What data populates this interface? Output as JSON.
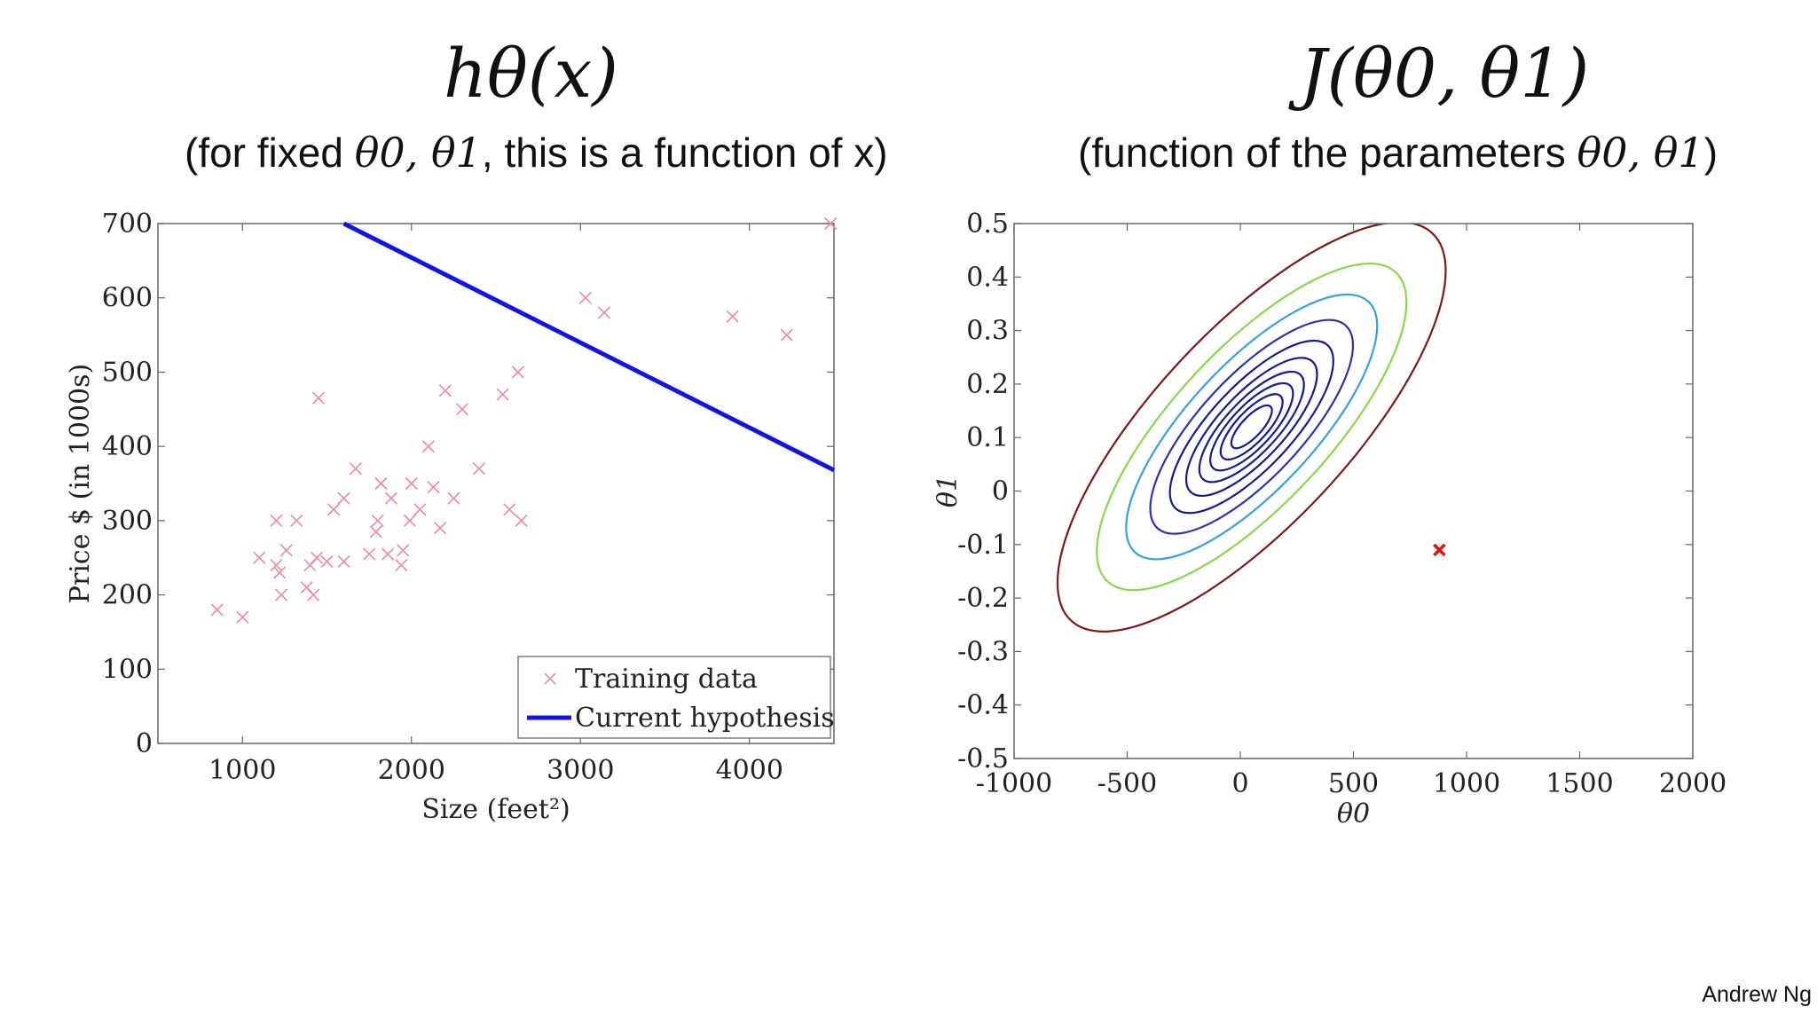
{
  "slide": {
    "left_title": "hθ(x)",
    "right_title": "J(θ0, θ1)",
    "left_subtitle_pre": "(for fixed ",
    "left_subtitle_math": "θ0, θ1",
    "left_subtitle_post": ", this is a function of x)",
    "right_subtitle_pre": "(function of the parameters ",
    "right_subtitle_math": "θ0, θ1",
    "right_subtitle_post": ")",
    "footer": "Andrew Ng"
  },
  "chart_data": [
    {
      "type": "scatter",
      "xlabel": "Size (feet²)",
      "ylabel": "Price $ (in 1000s)",
      "xlim": [
        500,
        4500
      ],
      "ylim": [
        0,
        700
      ],
      "xticks": [
        "1000",
        "2000",
        "3000",
        "4000"
      ],
      "yticks": [
        "0",
        "100",
        "200",
        "300",
        "400",
        "500",
        "600",
        "700"
      ],
      "legend": {
        "placement": "bottom-right",
        "entries": [
          "Training data",
          "Current hypothesis"
        ]
      },
      "series": [
        {
          "name": "Training data",
          "style": "x-marker",
          "color": "#f08a9a",
          "points": [
            [
              850,
              180
            ],
            [
              1000,
              170
            ],
            [
              1100,
              250
            ],
            [
              1200,
              300
            ],
            [
              1200,
              240
            ],
            [
              1220,
              230
            ],
            [
              1230,
              200
            ],
            [
              1260,
              260
            ],
            [
              1320,
              300
            ],
            [
              1380,
              210
            ],
            [
              1400,
              240
            ],
            [
              1420,
              200
            ],
            [
              1440,
              250
            ],
            [
              1450,
              465
            ],
            [
              1500,
              245
            ],
            [
              1540,
              315
            ],
            [
              1600,
              245
            ],
            [
              1600,
              330
            ],
            [
              1670,
              370
            ],
            [
              1750,
              255
            ],
            [
              1790,
              285
            ],
            [
              1800,
              300
            ],
            [
              1820,
              350
            ],
            [
              1860,
              255
            ],
            [
              1880,
              330
            ],
            [
              1940,
              240
            ],
            [
              1950,
              260
            ],
            [
              1990,
              300
            ],
            [
              2000,
              350
            ],
            [
              2050,
              315
            ],
            [
              2100,
              400
            ],
            [
              2130,
              345
            ],
            [
              2170,
              290
            ],
            [
              2200,
              475
            ],
            [
              2250,
              330
            ],
            [
              2300,
              450
            ],
            [
              2400,
              370
            ],
            [
              2540,
              470
            ],
            [
              2580,
              315
            ],
            [
              2630,
              500
            ],
            [
              2650,
              300
            ],
            [
              3030,
              600
            ],
            [
              3140,
              580
            ],
            [
              3900,
              575
            ],
            [
              4220,
              550
            ],
            [
              4480,
              700
            ]
          ]
        },
        {
          "name": "Current hypothesis",
          "style": "line",
          "color": "#1414e0",
          "line": [
            [
              1600,
              700
            ],
            [
              4500,
              368
            ]
          ]
        }
      ]
    },
    {
      "type": "contour",
      "xlabel": "θ0",
      "ylabel": "θ1",
      "xlim": [
        -1000,
        2000
      ],
      "ylim": [
        -0.5,
        0.5
      ],
      "xticks": [
        "-1000",
        "-500",
        "0",
        "500",
        "1000",
        "1500",
        "2000"
      ],
      "yticks": [
        "0.5",
        "0.4",
        "0.3",
        "0.2",
        "0.1",
        "0",
        "-0.1",
        "-0.2",
        "-0.3",
        "-0.4",
        "-0.5"
      ],
      "center": [
        50,
        0.12
      ],
      "levels": [
        {
          "k": 0.12,
          "color": "#1a1a8c"
        },
        {
          "k": 0.28,
          "color": "#1a1a8c"
        },
        {
          "k": 0.5,
          "color": "#1a1a8c"
        },
        {
          "k": 0.8,
          "color": "#1a1a8c"
        },
        {
          "k": 1.25,
          "color": "#1a1a8c"
        },
        {
          "k": 1.95,
          "color": "#1a1a8c"
        },
        {
          "k": 3.0,
          "color": "#2d34a8"
        },
        {
          "k": 4.6,
          "color": "#3aa0d8"
        },
        {
          "k": 7.0,
          "color": "#8ad84e"
        },
        {
          "k": 11.0,
          "color": "#7a1a1a"
        }
      ],
      "marker": {
        "x": 880,
        "y": -0.11,
        "color": "#e01010"
      }
    }
  ]
}
